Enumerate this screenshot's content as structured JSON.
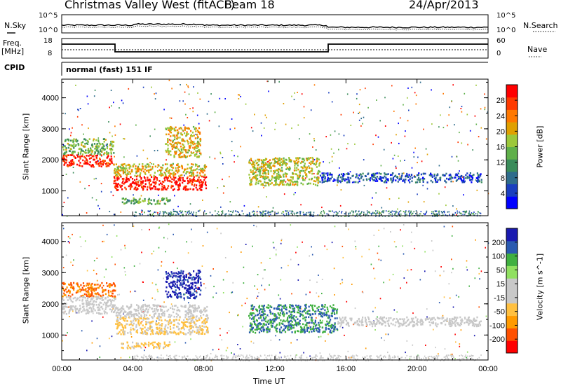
{
  "header": {
    "station": "Christmas Valley West (fitACF)",
    "beam": "Beam 18",
    "date": "24/Apr/2013"
  },
  "nsky_panel": {
    "left_label": "N.Sky",
    "right_label": "N.Search",
    "tick_top": "10^5",
    "tick_bottom": "10^0"
  },
  "freq_panel": {
    "label_line1": "Freq.",
    "label_line2": "[MHz]",
    "tick_top": "18",
    "tick_bottom": "8",
    "right_label": "Nave",
    "right_tick_top": "60",
    "right_tick_bottom": "0"
  },
  "cpid": {
    "label": "CPID",
    "value": "normal (fast) 151 IF"
  },
  "chart_data": [
    {
      "type": "heatmap",
      "title": "",
      "ylabel": "Slant Range [km]",
      "ylim": [
        200,
        4600
      ],
      "yticks": [
        "1000",
        "2000",
        "3000",
        "4000"
      ],
      "colorbar": {
        "label": "Power [dB]",
        "ticks": [
          "4",
          "8",
          "12",
          "16",
          "20",
          "24",
          "28"
        ],
        "range": [
          0,
          32
        ],
        "colors": [
          "#0000ff",
          "#1a3fbf",
          "#2e6c8c",
          "#3a8c5a",
          "#5fb04a",
          "#9cc83a",
          "#e0a000",
          "#ff7800",
          "#ff3a00",
          "#ff0000"
        ]
      },
      "regions": [
        {
          "t0": 0.0,
          "t1": 2.9,
          "r0": 1800,
          "r1": 2200,
          "power": 29
        },
        {
          "t0": 0.0,
          "t1": 2.9,
          "r0": 2200,
          "r1": 2700,
          "power": 15
        },
        {
          "t0": 2.9,
          "t1": 8.1,
          "r0": 1050,
          "r1": 1500,
          "power": 30
        },
        {
          "t0": 2.9,
          "t1": 8.1,
          "r0": 1500,
          "r1": 1900,
          "power": 20
        },
        {
          "t0": 5.8,
          "t1": 7.8,
          "r0": 2100,
          "r1": 3100,
          "power": 20
        },
        {
          "t0": 3.3,
          "t1": 6.1,
          "r0": 600,
          "r1": 800,
          "power": 14
        },
        {
          "t0": 10.5,
          "t1": 14.5,
          "r0": 1200,
          "r1": 2100,
          "power": 18
        },
        {
          "t0": 14.5,
          "t1": 23.6,
          "r0": 1300,
          "r1": 1600,
          "power": 6
        }
      ]
    },
    {
      "type": "heatmap",
      "title": "",
      "xlabel": "Time UT",
      "ylabel": "Slant Range [km]",
      "ylim": [
        200,
        4600
      ],
      "xlim": [
        0,
        24
      ],
      "xticks": [
        "00:00",
        "04:00",
        "08:00",
        "12:00",
        "16:00",
        "20:00",
        "00:00"
      ],
      "yticks": [
        "1000",
        "2000",
        "3000",
        "4000"
      ],
      "colorbar": {
        "label": "Velocity [m s^-1]",
        "ticks": [
          "200",
          "100",
          "50",
          "15",
          "-15",
          "-50",
          "-100",
          "-200"
        ],
        "range": [
          -250,
          250
        ],
        "colors": [
          "#ff0000",
          "#ff5000",
          "#ff9a00",
          "#ffc040",
          "#c8c8c8",
          "#c8c8c8",
          "#90e060",
          "#40b040",
          "#2a5ab0",
          "#1a1ab0"
        ]
      },
      "regions": [
        {
          "t0": 0.0,
          "t1": 3.0,
          "r0": 2250,
          "r1": 2700,
          "velocity": -150
        },
        {
          "t0": 0.0,
          "t1": 3.0,
          "r0": 1700,
          "r1": 2250,
          "velocity": 0
        },
        {
          "t0": 3.0,
          "t1": 8.2,
          "r0": 1050,
          "r1": 1600,
          "velocity": -60
        },
        {
          "t0": 3.0,
          "t1": 8.2,
          "r0": 1600,
          "r1": 2000,
          "velocity": 0
        },
        {
          "t0": 5.8,
          "t1": 7.8,
          "r0": 2200,
          "r1": 3100,
          "velocity": 220
        },
        {
          "t0": 3.3,
          "t1": 6.1,
          "r0": 600,
          "r1": 800,
          "velocity": -70
        },
        {
          "t0": 10.5,
          "t1": 15.5,
          "r0": 1100,
          "r1": 2000,
          "velocity": 150
        },
        {
          "t0": 15.5,
          "t1": 23.6,
          "r0": 1300,
          "r1": 1600,
          "velocity": 0
        }
      ]
    }
  ]
}
